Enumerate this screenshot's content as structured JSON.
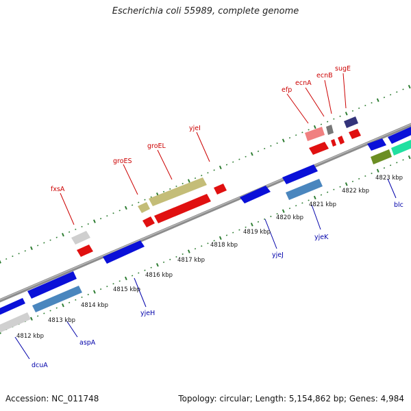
{
  "title": "Escherichia coli 55989, complete genome",
  "footer": {
    "accession": "Accession: NC_011748",
    "summary": "Topology: circular; Length: 5,154,862 bp; Genes: 4,984"
  },
  "colors": {
    "backbone": "#8a8a8a",
    "tick": "#2e7d32",
    "label_top": "#cc0000",
    "label_bottom": "#0000aa"
  },
  "ticks": [
    {
      "label": "4812 kbp"
    },
    {
      "label": "4813 kbp"
    },
    {
      "label": "4814 kbp"
    },
    {
      "label": "4815 kbp"
    },
    {
      "label": "4816 kbp"
    },
    {
      "label": "4817 kbp"
    },
    {
      "label": "4818 kbp"
    },
    {
      "label": "4819 kbp"
    },
    {
      "label": "4820 kbp"
    },
    {
      "label": "4821 kbp"
    },
    {
      "label": "4822 kbp"
    },
    {
      "label": "4823 kbp"
    }
  ],
  "top_labels": [
    {
      "text": "fxsA"
    },
    {
      "text": "groES"
    },
    {
      "text": "groEL"
    },
    {
      "text": "yjeI"
    },
    {
      "text": "efp"
    },
    {
      "text": "ecnA"
    },
    {
      "text": "ecnB"
    },
    {
      "text": "sugE"
    }
  ],
  "bottom_labels": [
    {
      "text": "dcuA"
    },
    {
      "text": "aspA"
    },
    {
      "text": "yjeH"
    },
    {
      "text": "yjeJ"
    },
    {
      "text": "yjeK"
    },
    {
      "text": "blc"
    }
  ]
}
